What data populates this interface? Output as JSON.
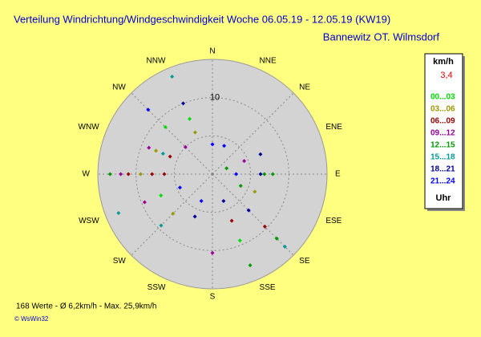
{
  "chart_data": {
    "type": "polar-scatter",
    "title": "Verteilung Windrichtung/Windgeschwindigkeit  Woche 06.05.19 - 12.05.19 (KW19)",
    "subtitle": "Bannewitz OT. Wilmsdorf",
    "directions": [
      "N",
      "NNE",
      "NE",
      "ENE",
      "E",
      "ESE",
      "SE",
      "SSE",
      "S",
      "SSW",
      "SW",
      "WSW",
      "W",
      "WNW",
      "NW",
      "NNW"
    ],
    "rlim": [
      0,
      15
    ],
    "rgrid": [
      5,
      10
    ],
    "rticks": [
      10
    ],
    "legend_title": "km/h",
    "legend_current": "3,4",
    "legend_unit": "Uhr",
    "series": [
      {
        "name": "00...03",
        "color": "#00dd00",
        "x": [
          337.5,
          315,
          247.5,
          157.5,
          135
        ],
        "values": [
          7.8,
          8.7,
          7.3,
          9.4,
          11.9
        ]
      },
      {
        "name": "03...06",
        "color": "#999900",
        "x": [
          337.5,
          270,
          225,
          112.5,
          292.5
        ],
        "values": [
          5.9,
          9.4,
          7.3,
          6.0,
          8.0
        ]
      },
      {
        "name": "06...09",
        "color": "#990000",
        "x": [
          270,
          270,
          292.5,
          135,
          157.5,
          270
        ],
        "values": [
          11,
          7.9,
          6,
          9.7,
          6.6,
          6.3
        ]
      },
      {
        "name": "09...12",
        "color": "#990099",
        "x": [
          270,
          247.5,
          292.5,
          180,
          315,
          67.5
        ],
        "values": [
          12,
          9.6,
          9,
          10.3,
          5,
          4.5
        ]
      },
      {
        "name": "12...15",
        "color": "#009900",
        "x": [
          90,
          90,
          270,
          135,
          157.5,
          112.5,
          67.5
        ],
        "values": [
          7.9,
          6.8,
          13.4,
          11.9,
          12.9,
          4,
          2
        ]
      },
      {
        "name": "15...18",
        "color": "#009999",
        "x": [
          247.5,
          337.5,
          135,
          292.5,
          225
        ],
        "values": [
          13.3,
          13.8,
          13.4,
          7,
          9.5
        ]
      },
      {
        "name": "18...21",
        "color": "#000099",
        "x": [
          337.5,
          135,
          157.5,
          202.5,
          90,
          67.5
        ],
        "values": [
          10,
          6.7,
          3.8,
          6,
          6.3,
          6.8
        ]
      },
      {
        "name": "21...24",
        "color": "#0000ff",
        "x": [
          0,
          22.5,
          315,
          202.5,
          90,
          247.5
        ],
        "values": [
          3.9,
          4,
          11.9,
          3.8,
          3.1,
          4.6
        ]
      }
    ],
    "footer": "168 Werte   -   Ø 6,2km/h   -   Max. 25,9km/h",
    "copyright": "© WsWin32"
  }
}
